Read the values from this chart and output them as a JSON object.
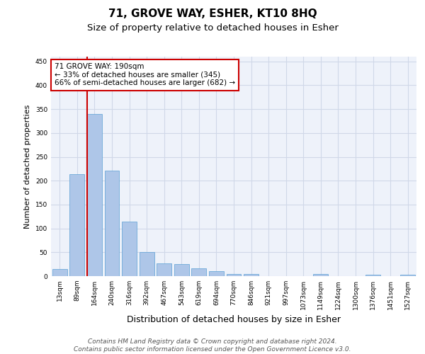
{
  "title1": "71, GROVE WAY, ESHER, KT10 8HQ",
  "title2": "Size of property relative to detached houses in Esher",
  "xlabel": "Distribution of detached houses by size in Esher",
  "ylabel": "Number of detached properties",
  "categories": [
    "13sqm",
    "89sqm",
    "164sqm",
    "240sqm",
    "316sqm",
    "392sqm",
    "467sqm",
    "543sqm",
    "619sqm",
    "694sqm",
    "770sqm",
    "846sqm",
    "921sqm",
    "997sqm",
    "1073sqm",
    "1149sqm",
    "1224sqm",
    "1300sqm",
    "1376sqm",
    "1451sqm",
    "1527sqm"
  ],
  "values": [
    15,
    213,
    340,
    221,
    114,
    50,
    26,
    25,
    16,
    10,
    5,
    4,
    0,
    0,
    0,
    4,
    0,
    0,
    3,
    0,
    3
  ],
  "bar_color": "#aec6e8",
  "bar_edgecolor": "#5a9fd4",
  "grid_color": "#d0d8e8",
  "bg_color": "#eef2fa",
  "vline_color": "#cc0000",
  "annotation_text": "71 GROVE WAY: 190sqm\n← 33% of detached houses are smaller (345)\n66% of semi-detached houses are larger (682) →",
  "annotation_box_color": "#ffffff",
  "annotation_box_edgecolor": "#cc0000",
  "ylim": [
    0,
    460
  ],
  "yticks": [
    0,
    50,
    100,
    150,
    200,
    250,
    300,
    350,
    400,
    450
  ],
  "footer_text": "Contains HM Land Registry data © Crown copyright and database right 2024.\nContains public sector information licensed under the Open Government Licence v3.0.",
  "title1_fontsize": 11,
  "title2_fontsize": 9.5,
  "xlabel_fontsize": 9,
  "ylabel_fontsize": 8,
  "tick_fontsize": 6.5,
  "footer_fontsize": 6.5
}
